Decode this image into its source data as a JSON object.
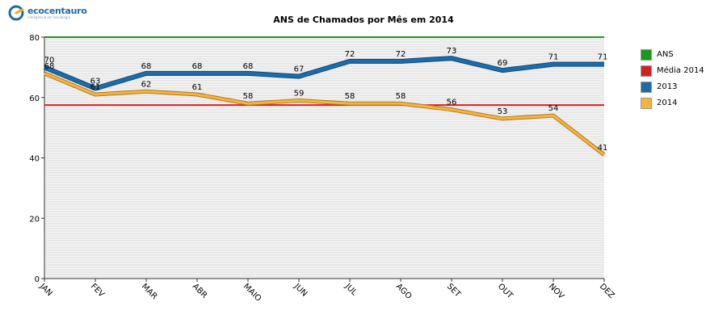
{
  "logo": {
    "name": "ecocentauro",
    "tagline": "inteligência em tecnologia"
  },
  "chart_data": {
    "type": "line",
    "title": "ANS de Chamados por Mês em 2014",
    "xlabel": "",
    "ylabel": "",
    "categories": [
      "JAN",
      "FEV",
      "MAR",
      "ABR",
      "MAIO",
      "JUN",
      "JUL",
      "AGO",
      "SET",
      "OUT",
      "NOV",
      "DEZ"
    ],
    "ylim": [
      0,
      80
    ],
    "yticks": [
      0,
      20,
      40,
      60,
      80
    ],
    "grid": true,
    "legend_position": "right",
    "reference_lines": [
      {
        "name": "ANS",
        "value": 80,
        "color": "#1a9a1a"
      },
      {
        "name": "Média 2014",
        "value": 57.5,
        "color": "#d42020"
      }
    ],
    "series": [
      {
        "name": "2013",
        "color": "#1f6ba8",
        "values": [
          70,
          63,
          68,
          68,
          68,
          67,
          72,
          72,
          73,
          69,
          71,
          71
        ]
      },
      {
        "name": "2014",
        "color": "#f5b342",
        "values": [
          68,
          61,
          62,
          61,
          58,
          59,
          58,
          58,
          56,
          53,
          54,
          41
        ]
      }
    ],
    "legend": [
      {
        "label": "ANS",
        "color": "#1a9a1a"
      },
      {
        "label": "Média 2014",
        "color": "#d42020"
      },
      {
        "label": "2013",
        "color": "#1f6ba8"
      },
      {
        "label": "2014",
        "color": "#f5b342"
      }
    ]
  }
}
